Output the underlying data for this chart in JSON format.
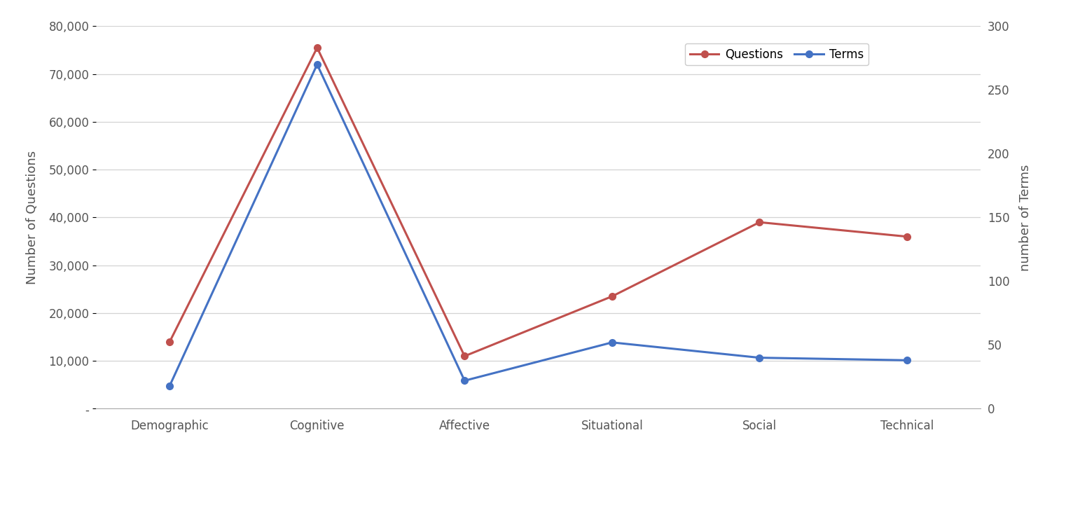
{
  "categories": [
    "Demographic",
    "Cognitive",
    "Affective",
    "Situational",
    "Social",
    "Technical"
  ],
  "questions": [
    14000,
    75500,
    11000,
    23500,
    39000,
    36000
  ],
  "terms": [
    18,
    270,
    22,
    52,
    40,
    38
  ],
  "questions_color": "#C0504D",
  "terms_color": "#4472C4",
  "ylabel_left": "Number of Questions",
  "ylabel_right": "number of Terms",
  "ylim_left": [
    0,
    80000
  ],
  "ylim_right": [
    0,
    300
  ],
  "yticks_left": [
    0,
    10000,
    20000,
    30000,
    40000,
    50000,
    60000,
    70000,
    80000
  ],
  "ytick_labels_left": [
    "-",
    "10,000",
    "20,000",
    "30,000",
    "40,000",
    "50,000",
    "60,000",
    "70,000",
    "80,000"
  ],
  "yticks_right": [
    0,
    50,
    100,
    150,
    200,
    250,
    300
  ],
  "legend_labels": [
    "Questions",
    "Terms"
  ],
  "background_color": "#ffffff",
  "grid_color": "#d3d3d3",
  "marker": "o",
  "linewidth": 2.2,
  "markersize": 7
}
